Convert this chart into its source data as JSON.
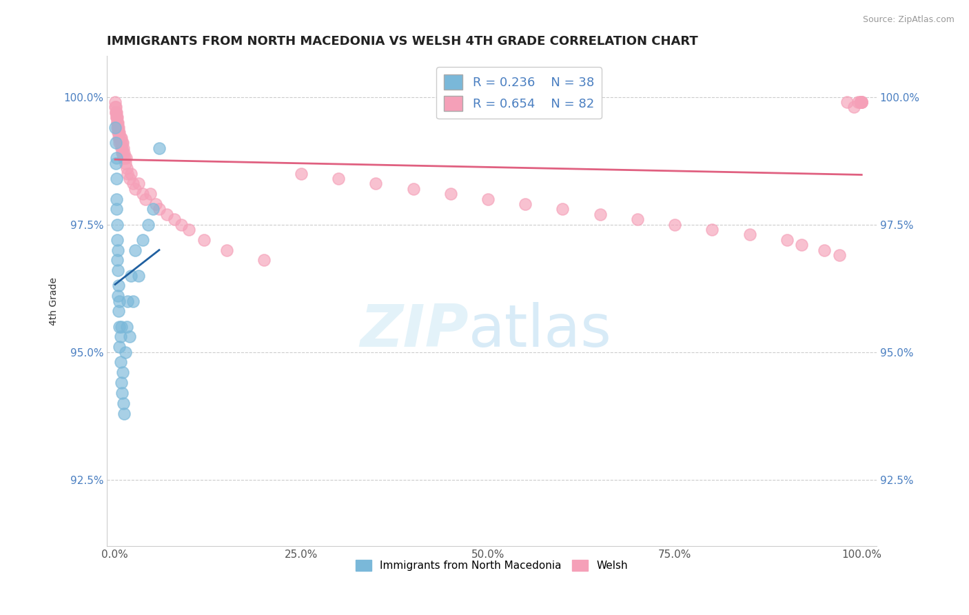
{
  "title": "IMMIGRANTS FROM NORTH MACEDONIA VS WELSH 4TH GRADE CORRELATION CHART",
  "source": "Source: ZipAtlas.com",
  "ylabel": "4th Grade",
  "xlim": [
    -0.01,
    1.02
  ],
  "ylim": [
    0.912,
    1.008
  ],
  "yticks": [
    0.925,
    0.95,
    0.975,
    1.0
  ],
  "ytick_labels": [
    "92.5%",
    "95.0%",
    "97.5%",
    "100.0%"
  ],
  "xticks": [
    0.0,
    0.25,
    0.5,
    0.75,
    1.0
  ],
  "xtick_labels": [
    "0.0%",
    "25.0%",
    "50.0%",
    "75.0%",
    "100.0%"
  ],
  "legend_r_blue": "R = 0.236",
  "legend_n_blue": "N = 38",
  "legend_r_pink": "R = 0.654",
  "legend_n_pink": "N = 82",
  "blue_color": "#7ab8d9",
  "pink_color": "#f5a0b8",
  "blue_line_color": "#2060a0",
  "pink_line_color": "#e06080",
  "watermark_zip": "ZIP",
  "watermark_atlas": "atlas",
  "blue_x": [
    0.001,
    0.002,
    0.002,
    0.003,
    0.003,
    0.003,
    0.003,
    0.004,
    0.004,
    0.004,
    0.005,
    0.005,
    0.005,
    0.006,
    0.006,
    0.007,
    0.007,
    0.007,
    0.008,
    0.008,
    0.009,
    0.009,
    0.01,
    0.011,
    0.012,
    0.013,
    0.015,
    0.017,
    0.018,
    0.02,
    0.022,
    0.025,
    0.028,
    0.032,
    0.038,
    0.045,
    0.052,
    0.06
  ],
  "blue_y": [
    0.994,
    0.991,
    0.987,
    0.988,
    0.984,
    0.98,
    0.978,
    0.975,
    0.972,
    0.968,
    0.97,
    0.966,
    0.961,
    0.963,
    0.958,
    0.96,
    0.955,
    0.951,
    0.953,
    0.948,
    0.955,
    0.944,
    0.942,
    0.946,
    0.94,
    0.938,
    0.95,
    0.955,
    0.96,
    0.953,
    0.965,
    0.96,
    0.97,
    0.965,
    0.972,
    0.975,
    0.978,
    0.99
  ],
  "pink_x": [
    0.001,
    0.001,
    0.002,
    0.002,
    0.002,
    0.003,
    0.003,
    0.003,
    0.004,
    0.004,
    0.004,
    0.004,
    0.005,
    0.005,
    0.005,
    0.006,
    0.006,
    0.006,
    0.006,
    0.007,
    0.007,
    0.007,
    0.008,
    0.008,
    0.009,
    0.009,
    0.01,
    0.01,
    0.01,
    0.011,
    0.011,
    0.012,
    0.012,
    0.013,
    0.014,
    0.015,
    0.016,
    0.017,
    0.018,
    0.02,
    0.022,
    0.025,
    0.028,
    0.032,
    0.038,
    0.042,
    0.048,
    0.055,
    0.06,
    0.07,
    0.08,
    0.09,
    0.1,
    0.12,
    0.15,
    0.2,
    0.25,
    0.3,
    0.35,
    0.4,
    0.45,
    0.5,
    0.55,
    0.6,
    0.65,
    0.7,
    0.75,
    0.8,
    0.85,
    0.9,
    0.92,
    0.95,
    0.97,
    0.98,
    0.99,
    0.995,
    0.998,
    0.999,
    1.0,
    1.0,
    1.0,
    1.0
  ],
  "pink_y": [
    0.999,
    0.998,
    0.998,
    0.997,
    0.997,
    0.997,
    0.996,
    0.996,
    0.996,
    0.995,
    0.995,
    0.994,
    0.995,
    0.994,
    0.993,
    0.994,
    0.993,
    0.993,
    0.992,
    0.993,
    0.992,
    0.991,
    0.992,
    0.991,
    0.992,
    0.99,
    0.991,
    0.99,
    0.989,
    0.991,
    0.989,
    0.99,
    0.988,
    0.989,
    0.988,
    0.987,
    0.988,
    0.986,
    0.985,
    0.984,
    0.985,
    0.983,
    0.982,
    0.983,
    0.981,
    0.98,
    0.981,
    0.979,
    0.978,
    0.977,
    0.976,
    0.975,
    0.974,
    0.972,
    0.97,
    0.968,
    0.985,
    0.984,
    0.983,
    0.982,
    0.981,
    0.98,
    0.979,
    0.978,
    0.977,
    0.976,
    0.975,
    0.974,
    0.973,
    0.972,
    0.971,
    0.97,
    0.969,
    0.999,
    0.998,
    0.999,
    0.999,
    0.999,
    0.999,
    0.999,
    0.999,
    0.999
  ]
}
